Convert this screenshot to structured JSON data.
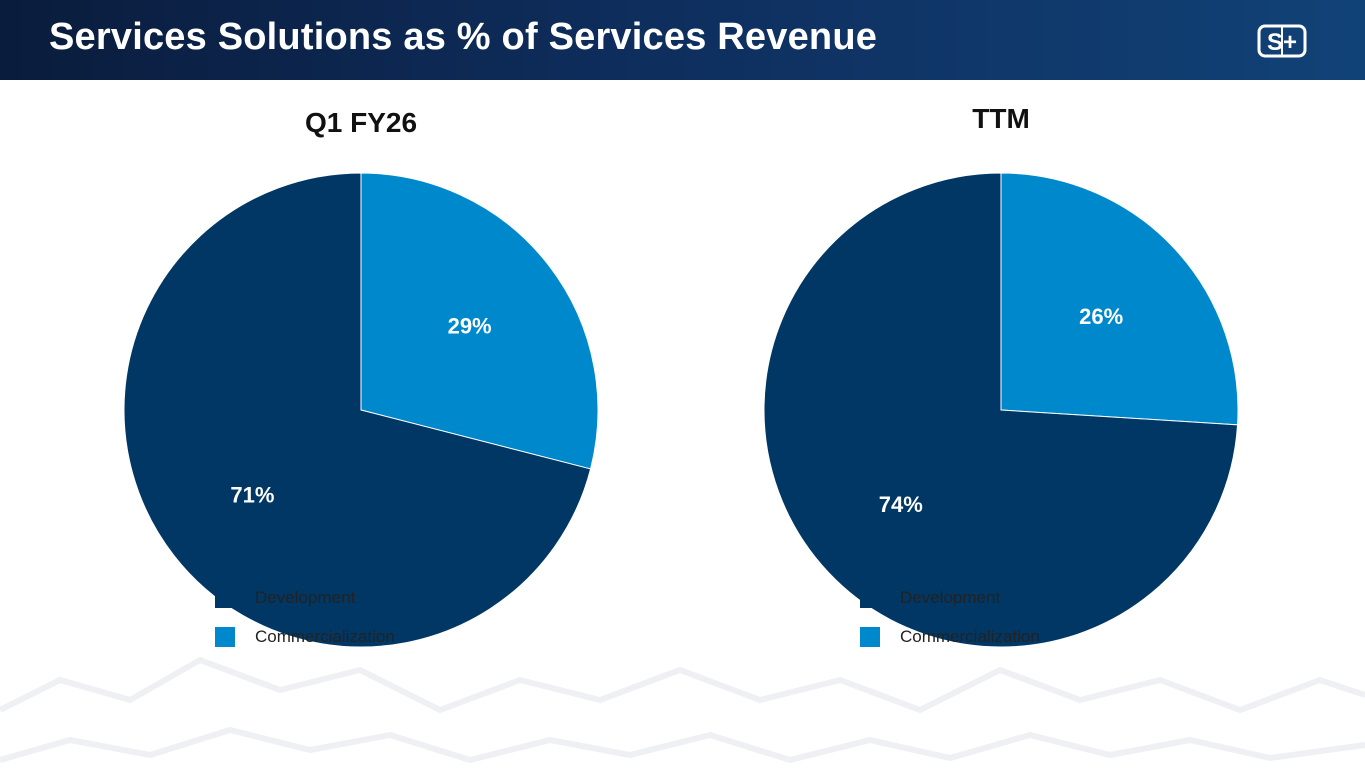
{
  "header": {
    "title": "Services Solutions as % of Services Revenue",
    "logo_text": "S+"
  },
  "colors": {
    "development": "#003764",
    "commercialization": "#0088cc",
    "header_dark": "#0a1c3c",
    "header_light": "#114277"
  },
  "chart_data": [
    {
      "type": "pie",
      "title": "Q1 FY26",
      "categories": [
        "Development",
        "Commercialization"
      ],
      "values": [
        71,
        29
      ],
      "labels": [
        "71%",
        "29%"
      ],
      "legend": [
        "Development",
        "Commercialization"
      ]
    },
    {
      "type": "pie",
      "title": "TTM",
      "categories": [
        "Development",
        "Commercialization"
      ],
      "values": [
        74,
        26
      ],
      "labels": [
        "74%",
        "26%"
      ],
      "legend": [
        "Development",
        "Commercialization"
      ]
    }
  ]
}
